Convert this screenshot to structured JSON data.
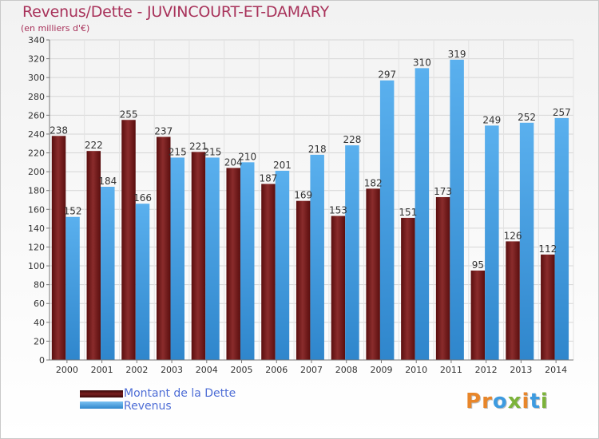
{
  "title": "Revenus/Dette - JUVINCOURT-ET-DAMARY",
  "subtitle": "(en milliers d'€)",
  "legend": {
    "debt_label": "Montant de la Dette",
    "revenue_label": "Revenus"
  },
  "logo": {
    "letters": [
      "P",
      "r",
      "o",
      "x",
      "i",
      "t",
      "i"
    ]
  },
  "colors": {
    "debt": "#6b1a1a",
    "revenue": "#3d9be0",
    "title": "#a8325a",
    "legend_text": "#4f6ed6",
    "logo": [
      "#e8862a",
      "#e8862a",
      "#3d9be0",
      "#7cb33a",
      "#e8862a",
      "#3d9be0",
      "#7cb33a"
    ]
  },
  "chart_data": {
    "type": "bar",
    "categories": [
      "2000",
      "2001",
      "2002",
      "2003",
      "2004",
      "2005",
      "2006",
      "2007",
      "2008",
      "2009",
      "2010",
      "2011",
      "2012",
      "2013",
      "2014"
    ],
    "series": [
      {
        "name": "Montant de la Dette",
        "values": [
          238,
          222,
          255,
          237,
          221,
          204,
          187,
          169,
          153,
          182,
          151,
          173,
          95,
          126,
          112
        ]
      },
      {
        "name": "Revenus",
        "values": [
          152,
          184,
          166,
          215,
          215,
          210,
          201,
          218,
          228,
          297,
          310,
          319,
          249,
          252,
          257
        ]
      }
    ],
    "ylim": [
      0,
      340
    ],
    "yticks": [
      0,
      20,
      40,
      60,
      80,
      100,
      120,
      140,
      160,
      180,
      200,
      220,
      240,
      260,
      280,
      300,
      320,
      340
    ],
    "grid": true,
    "legend_position": "bottom-left"
  }
}
